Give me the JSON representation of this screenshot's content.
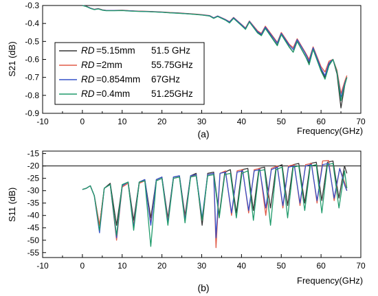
{
  "chart_data": [
    {
      "id": "a",
      "type": "line",
      "panel_label": "(a)",
      "xlabel": "Frequency(GHz)",
      "ylabel": "S21 (dB)",
      "xlim": [
        -10,
        70
      ],
      "ylim": [
        -0.9,
        -0.3
      ],
      "xticks": [
        -10,
        0,
        10,
        20,
        30,
        40,
        50,
        60,
        70
      ],
      "yticks": [
        -0.9,
        -0.8,
        -0.7,
        -0.6,
        -0.5,
        -0.4,
        -0.3
      ],
      "grid": false,
      "legend": "left",
      "series": [
        {
          "name_italic": "RD",
          "name_rest": "=5.15mm",
          "freq": "51.5 GHz",
          "color": "#333333",
          "x": [
            0,
            1,
            2,
            3,
            4,
            5,
            6,
            8,
            10,
            12,
            14,
            16,
            18,
            20,
            22,
            24,
            26,
            28,
            30,
            32,
            33,
            34,
            36,
            37,
            38,
            40,
            41,
            42,
            44,
            45,
            46,
            48,
            49,
            50,
            52,
            53,
            54,
            56,
            57,
            58,
            60,
            61,
            62,
            63,
            64,
            65,
            66,
            66.5
          ],
          "y": [
            -0.3,
            -0.305,
            -0.315,
            -0.322,
            -0.318,
            -0.325,
            -0.328,
            -0.328,
            -0.327,
            -0.33,
            -0.332,
            -0.333,
            -0.335,
            -0.337,
            -0.34,
            -0.342,
            -0.345,
            -0.348,
            -0.352,
            -0.358,
            -0.37,
            -0.36,
            -0.38,
            -0.395,
            -0.37,
            -0.41,
            -0.43,
            -0.39,
            -0.45,
            -0.465,
            -0.425,
            -0.49,
            -0.52,
            -0.46,
            -0.53,
            -0.56,
            -0.5,
            -0.58,
            -0.62,
            -0.54,
            -0.66,
            -0.7,
            -0.63,
            -0.6,
            -0.68,
            -0.87,
            -0.74,
            -0.7
          ]
        },
        {
          "name_italic": "RD",
          "name_rest": "=2mm",
          "freq": "55.75GHz",
          "color": "#e05a47",
          "x": [
            0,
            1,
            2,
            3,
            4,
            5,
            6,
            8,
            10,
            12,
            14,
            16,
            18,
            20,
            22,
            24,
            26,
            28,
            30,
            32,
            33,
            34,
            36,
            37,
            38,
            40,
            41,
            42,
            44,
            45,
            46,
            48,
            49,
            50,
            52,
            53,
            54,
            56,
            57,
            58,
            60,
            61,
            62,
            63,
            64,
            65,
            66,
            66.5
          ],
          "y": [
            -0.3,
            -0.304,
            -0.314,
            -0.321,
            -0.317,
            -0.324,
            -0.327,
            -0.327,
            -0.326,
            -0.329,
            -0.331,
            -0.332,
            -0.334,
            -0.336,
            -0.339,
            -0.341,
            -0.344,
            -0.347,
            -0.351,
            -0.356,
            -0.368,
            -0.358,
            -0.378,
            -0.39,
            -0.366,
            -0.405,
            -0.425,
            -0.386,
            -0.44,
            -0.455,
            -0.415,
            -0.475,
            -0.505,
            -0.45,
            -0.515,
            -0.535,
            -0.485,
            -0.56,
            -0.6,
            -0.53,
            -0.64,
            -0.67,
            -0.61,
            -0.6,
            -0.66,
            -0.79,
            -0.72,
            -0.69
          ]
        },
        {
          "name_italic": "RD",
          "name_rest": "=0.854mm",
          "freq": "67GHz",
          "color": "#3550c8",
          "x": [
            0,
            1,
            2,
            3,
            4,
            5,
            6,
            8,
            10,
            12,
            14,
            16,
            18,
            20,
            22,
            24,
            26,
            28,
            30,
            32,
            33,
            34,
            36,
            37,
            38,
            40,
            41,
            42,
            44,
            45,
            46,
            48,
            49,
            50,
            52,
            53,
            54,
            56,
            57,
            58,
            60,
            61,
            62,
            63,
            64,
            65,
            66,
            66.5
          ],
          "y": [
            -0.3,
            -0.305,
            -0.315,
            -0.322,
            -0.318,
            -0.325,
            -0.328,
            -0.328,
            -0.327,
            -0.33,
            -0.332,
            -0.333,
            -0.335,
            -0.337,
            -0.34,
            -0.342,
            -0.345,
            -0.348,
            -0.352,
            -0.357,
            -0.369,
            -0.359,
            -0.379,
            -0.392,
            -0.368,
            -0.407,
            -0.428,
            -0.388,
            -0.445,
            -0.46,
            -0.42,
            -0.48,
            -0.51,
            -0.455,
            -0.52,
            -0.545,
            -0.49,
            -0.565,
            -0.61,
            -0.535,
            -0.65,
            -0.69,
            -0.62,
            -0.6,
            -0.67,
            -0.81,
            -0.73,
            -0.7
          ]
        },
        {
          "name_italic": "RD",
          "name_rest": "=0.4mm",
          "freq": "51.25GHz",
          "color": "#1f9a6a",
          "x": [
            0,
            1,
            2,
            3,
            4,
            5,
            6,
            8,
            10,
            12,
            14,
            16,
            18,
            20,
            22,
            24,
            26,
            28,
            30,
            32,
            33,
            34,
            36,
            37,
            38,
            40,
            41,
            42,
            44,
            45,
            46,
            48,
            49,
            50,
            52,
            53,
            54,
            56,
            57,
            58,
            60,
            61,
            62,
            63,
            64,
            65,
            66,
            66.5
          ],
          "y": [
            -0.3,
            -0.306,
            -0.316,
            -0.323,
            -0.319,
            -0.326,
            -0.329,
            -0.329,
            -0.328,
            -0.331,
            -0.333,
            -0.334,
            -0.336,
            -0.338,
            -0.341,
            -0.343,
            -0.346,
            -0.349,
            -0.353,
            -0.359,
            -0.372,
            -0.361,
            -0.382,
            -0.397,
            -0.372,
            -0.412,
            -0.433,
            -0.392,
            -0.452,
            -0.468,
            -0.428,
            -0.492,
            -0.524,
            -0.462,
            -0.532,
            -0.56,
            -0.5,
            -0.578,
            -0.63,
            -0.545,
            -0.665,
            -0.71,
            -0.635,
            -0.6,
            -0.67,
            -0.83,
            -0.74,
            -0.7
          ]
        }
      ]
    },
    {
      "id": "b",
      "type": "line",
      "panel_label": "(b)",
      "xlabel": "Frequency(GHz)",
      "ylabel": "S11 (dB)",
      "xlim": [
        -10,
        70
      ],
      "ylim": [
        -57,
        -14
      ],
      "xticks": [
        -10,
        0,
        10,
        20,
        30,
        40,
        50,
        60,
        70
      ],
      "yticks": [
        -55,
        -50,
        -45,
        -40,
        -35,
        -30,
        -25,
        -20,
        -15
      ],
      "reference_line": -20,
      "grid": false,
      "series": [
        {
          "color": "#333333",
          "x": [
            0,
            1,
            2,
            3,
            4.3,
            5.5,
            7,
            8.6,
            10,
            11.5,
            12.9,
            14.3,
            15.7,
            17.2,
            18.6,
            20,
            21.5,
            22.9,
            24.4,
            25.8,
            27.2,
            28.6,
            30.1,
            31.5,
            33,
            34.4,
            35.8,
            37.2,
            38.7,
            40.1,
            41.6,
            43,
            44.4,
            45.8,
            47.3,
            48.7,
            50.2,
            51.6,
            53,
            54.4,
            55.9,
            57.3,
            58.8,
            60.2,
            61.6,
            63,
            64.5,
            65.9,
            66.5
          ],
          "y": [
            -29.5,
            -29,
            -28,
            -32,
            -44,
            -29,
            -27,
            -44,
            -28,
            -26.5,
            -42,
            -26.5,
            -25.5,
            -41,
            -25.5,
            -24.5,
            -41,
            -24.5,
            -24,
            -40,
            -24,
            -23,
            -44,
            -23,
            -22.5,
            -40,
            -22.5,
            -21.5,
            -39,
            -21.5,
            -21,
            -38,
            -21,
            -20.5,
            -37,
            -20.5,
            -19.5,
            -36,
            -19.5,
            -19,
            -35,
            -19,
            -18.5,
            -34,
            -18.5,
            -18,
            -33,
            -20,
            -23
          ]
        },
        {
          "color": "#e05a47",
          "x": [
            0,
            1,
            2,
            3,
            4.3,
            5.5,
            7,
            8.6,
            10,
            11.5,
            12.9,
            14.3,
            15.7,
            17.2,
            18.6,
            20,
            21.5,
            22.9,
            24.4,
            25.8,
            27.2,
            28.6,
            30.1,
            31.5,
            33,
            33.6,
            34.6,
            36,
            37.5,
            38.9,
            40.3,
            41.8,
            43.2,
            44.6,
            46.1,
            47.5,
            49,
            50.4,
            51.8,
            53.3,
            54.7,
            56.1,
            57.6,
            59,
            60.4,
            61.9,
            63.3,
            64.7,
            66,
            66.5
          ],
          "y": [
            -29.5,
            -29,
            -28,
            -32,
            -44,
            -29,
            -27.5,
            -50,
            -28.5,
            -27,
            -44,
            -27,
            -26,
            -43,
            -26,
            -25,
            -42,
            -25,
            -24.5,
            -41,
            -24.5,
            -23.5,
            -42,
            -23.5,
            -23,
            -53,
            -23,
            -22,
            -40,
            -22,
            -21.5,
            -39,
            -21.5,
            -21,
            -40,
            -21,
            -20,
            -37,
            -20,
            -19.5,
            -36,
            -19.5,
            -19,
            -35,
            -18,
            -17.8,
            -34,
            -21,
            -27,
            -30
          ]
        },
        {
          "color": "#3550c8",
          "x": [
            0,
            1,
            2,
            3,
            4.3,
            5.5,
            7,
            8.6,
            10,
            11.5,
            12.9,
            14.3,
            15.7,
            17.2,
            18.6,
            20,
            21.5,
            22.9,
            24.4,
            25.8,
            27.2,
            28.6,
            30.1,
            31.5,
            33,
            33.6,
            34.6,
            36,
            37.5,
            38.9,
            40.3,
            41.8,
            43.2,
            44.6,
            46.1,
            47.5,
            49,
            50.4,
            51.8,
            53.3,
            54.7,
            56.1,
            57.6,
            59,
            60.4,
            61.9,
            63.3,
            64.7,
            66,
            66.5
          ],
          "y": [
            -29.5,
            -29,
            -28,
            -32,
            -47,
            -29,
            -27.5,
            -49,
            -28,
            -26.5,
            -45,
            -26.5,
            -25.5,
            -44,
            -25.5,
            -24.5,
            -43,
            -24.5,
            -24,
            -42,
            -24,
            -23.5,
            -41,
            -23.5,
            -23,
            -49,
            -23,
            -22.5,
            -39,
            -22.5,
            -22,
            -38,
            -22,
            -21.5,
            -37,
            -21.5,
            -20.5,
            -36,
            -20.5,
            -20,
            -35,
            -20,
            -19.5,
            -34,
            -19.5,
            -19,
            -33,
            -21,
            -28,
            -30
          ]
        },
        {
          "color": "#1f9a6a",
          "x": [
            0,
            1,
            2,
            3,
            4.3,
            5.5,
            7,
            8.6,
            10,
            11.5,
            12.9,
            14.3,
            15.7,
            17.2,
            18.6,
            20,
            21.5,
            22.9,
            24.4,
            25.8,
            27.2,
            28.6,
            30.1,
            31.5,
            33,
            34.4,
            35.8,
            37.2,
            38.7,
            40.1,
            41.6,
            43,
            44.4,
            45.8,
            47.3,
            48.7,
            50.2,
            51.6,
            53,
            54.4,
            55.9,
            57.3,
            58.8,
            60.2,
            61.6,
            63,
            64.5,
            65.9,
            66.5
          ],
          "y": [
            -29.5,
            -29,
            -28,
            -32,
            -46,
            -29,
            -27.5,
            -48,
            -27.5,
            -26.5,
            -46,
            -26.5,
            -26,
            -52.5,
            -26,
            -25,
            -44,
            -25,
            -24.5,
            -43,
            -24.5,
            -24,
            -42,
            -24,
            -23.5,
            -41,
            -23.5,
            -23,
            -41,
            -23,
            -22,
            -42,
            -22,
            -21.5,
            -44,
            -21.5,
            -20.5,
            -41,
            -20.5,
            -20,
            -38,
            -20,
            -19.5,
            -39,
            -19.5,
            -19,
            -37,
            -22,
            -29
          ]
        }
      ]
    }
  ]
}
